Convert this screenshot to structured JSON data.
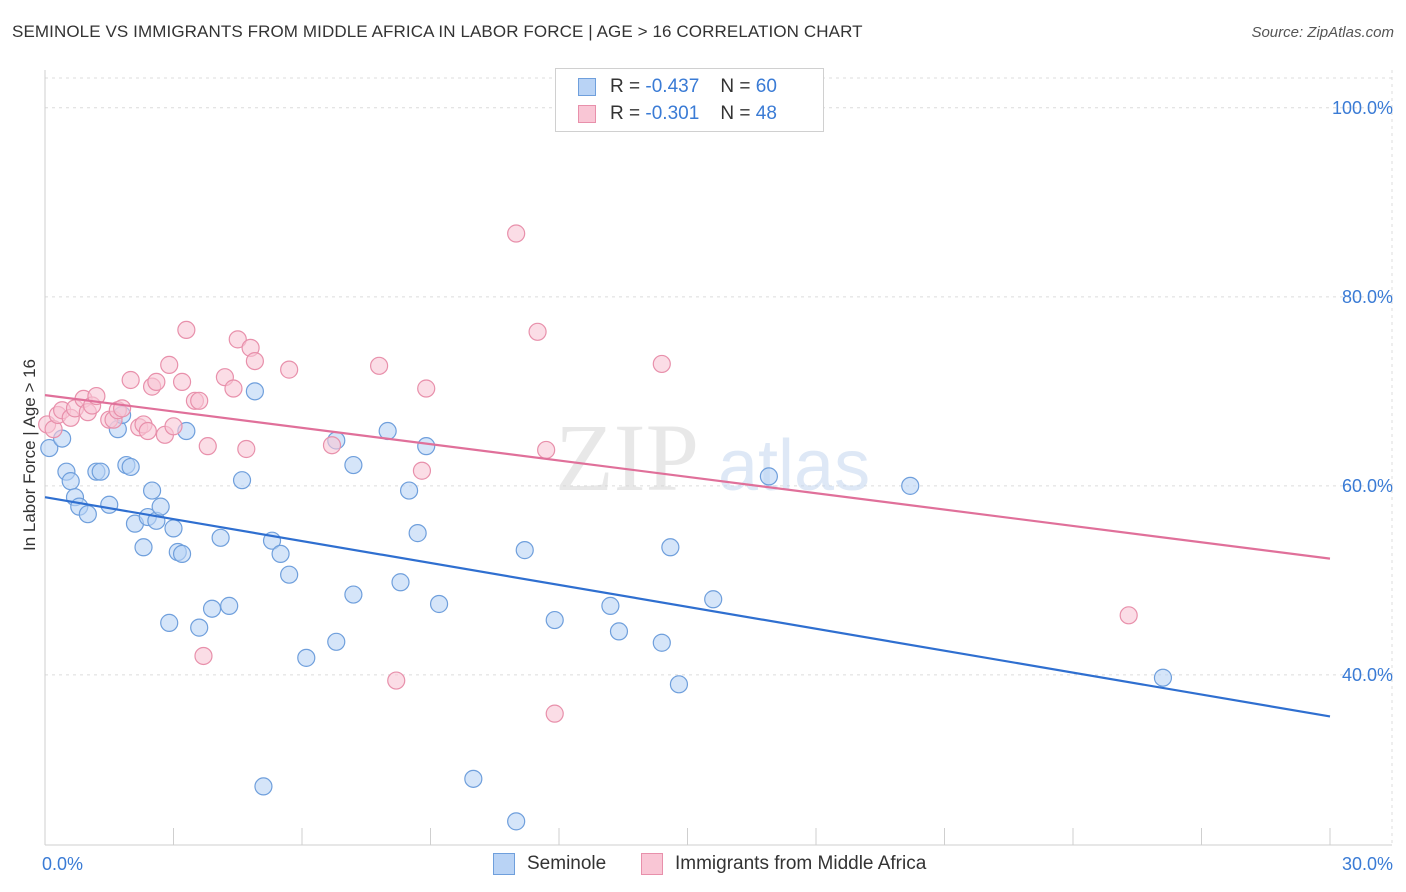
{
  "title": "SEMINOLE VS IMMIGRANTS FROM MIDDLE AFRICA IN LABOR FORCE | AGE > 16 CORRELATION CHART",
  "source": "Source: ZipAtlas.com",
  "watermark": {
    "zip": "ZIP",
    "atlas": "atlas"
  },
  "legend": {
    "rows": [
      {
        "r_label": "R =",
        "r_value": "-0.437",
        "n_label": "N =",
        "n_value": "60",
        "fill": "#b9d3f5",
        "stroke": "#6f9fdc"
      },
      {
        "r_label": "R =",
        "r_value": "-0.301",
        "n_label": "N =",
        "n_value": "48",
        "fill": "#f9c6d5",
        "stroke": "#e890ab"
      }
    ]
  },
  "chart_data": {
    "type": "scatter",
    "xlabel": "",
    "ylabel": "In Labor Force | Age > 16",
    "xlim": [
      0,
      30
    ],
    "ylim": [
      22,
      104
    ],
    "x_tick_labels": [
      {
        "value": 0,
        "label": "0.0%"
      },
      {
        "value": 30,
        "label": "30.0%"
      }
    ],
    "y_tick_labels": [
      {
        "value": 40,
        "label": "40.0%"
      },
      {
        "value": 60,
        "label": "60.0%"
      },
      {
        "value": 80,
        "label": "80.0%"
      },
      {
        "value": 100,
        "label": "100.0%"
      }
    ],
    "grid": true,
    "legend_placement": "top-center",
    "series": [
      {
        "name": "Seminole",
        "color": "#6f9fdc",
        "fill": "#b9d3f5",
        "trend_color": "#2f6fd0",
        "trend": {
          "x": [
            0,
            30
          ],
          "y": [
            58.8,
            35.6
          ]
        },
        "points": [
          [
            0.1,
            64
          ],
          [
            0.4,
            65
          ],
          [
            0.5,
            61.5
          ],
          [
            0.6,
            60.5
          ],
          [
            0.7,
            58.8
          ],
          [
            0.8,
            57.8
          ],
          [
            1.0,
            57
          ],
          [
            1.2,
            61.5
          ],
          [
            1.3,
            61.5
          ],
          [
            1.5,
            58
          ],
          [
            1.7,
            66
          ],
          [
            1.8,
            67.5
          ],
          [
            1.9,
            62.2
          ],
          [
            2.0,
            62
          ],
          [
            2.1,
            56
          ],
          [
            2.3,
            53.5
          ],
          [
            2.4,
            56.7
          ],
          [
            2.5,
            59.5
          ],
          [
            2.6,
            56.3
          ],
          [
            2.7,
            57.8
          ],
          [
            2.9,
            45.5
          ],
          [
            3.0,
            55.5
          ],
          [
            3.1,
            53
          ],
          [
            3.2,
            52.8
          ],
          [
            3.3,
            65.8
          ],
          [
            3.6,
            45
          ],
          [
            3.9,
            47
          ],
          [
            4.1,
            54.5
          ],
          [
            4.3,
            47.3
          ],
          [
            4.6,
            60.6
          ],
          [
            4.9,
            70
          ],
          [
            5.1,
            28.2
          ],
          [
            5.3,
            54.2
          ],
          [
            5.5,
            52.8
          ],
          [
            5.7,
            50.6
          ],
          [
            6.1,
            41.8
          ],
          [
            6.8,
            43.5
          ],
          [
            6.8,
            64.8
          ],
          [
            7.2,
            62.2
          ],
          [
            7.2,
            48.5
          ],
          [
            8.0,
            65.8
          ],
          [
            8.3,
            49.8
          ],
          [
            8.5,
            59.5
          ],
          [
            8.7,
            55
          ],
          [
            8.9,
            64.2
          ],
          [
            9.2,
            47.5
          ],
          [
            10.0,
            29
          ],
          [
            11.0,
            24.5
          ],
          [
            11.2,
            53.2
          ],
          [
            11.9,
            45.8
          ],
          [
            13.2,
            47.3
          ],
          [
            13.4,
            44.6
          ],
          [
            14.4,
            43.4
          ],
          [
            14.6,
            53.5
          ],
          [
            14.8,
            39
          ],
          [
            15.6,
            48
          ],
          [
            16.9,
            61
          ],
          [
            20.2,
            60
          ],
          [
            26.1,
            39.7
          ]
        ]
      },
      {
        "name": "Immigrants from Middle Africa",
        "color": "#e890ab",
        "fill": "#f9c6d5",
        "trend_color": "#e0709a",
        "trend": {
          "x": [
            0,
            30
          ],
          "y": [
            69.6,
            52.3
          ]
        },
        "points": [
          [
            0.05,
            66.5
          ],
          [
            0.2,
            66
          ],
          [
            0.3,
            67.5
          ],
          [
            0.4,
            68
          ],
          [
            0.6,
            67.2
          ],
          [
            0.7,
            68.2
          ],
          [
            0.9,
            69.2
          ],
          [
            1.0,
            67.8
          ],
          [
            1.1,
            68.5
          ],
          [
            1.2,
            69.5
          ],
          [
            1.5,
            67
          ],
          [
            1.6,
            67
          ],
          [
            1.7,
            68
          ],
          [
            1.8,
            68.2
          ],
          [
            2.0,
            71.2
          ],
          [
            2.2,
            66.2
          ],
          [
            2.3,
            66.5
          ],
          [
            2.4,
            65.8
          ],
          [
            2.5,
            70.5
          ],
          [
            2.6,
            71
          ],
          [
            2.8,
            65.4
          ],
          [
            2.9,
            72.8
          ],
          [
            3.0,
            66.3
          ],
          [
            3.2,
            71
          ],
          [
            3.3,
            76.5
          ],
          [
            3.5,
            69
          ],
          [
            3.6,
            69
          ],
          [
            3.7,
            42
          ],
          [
            3.8,
            64.2
          ],
          [
            4.2,
            71.5
          ],
          [
            4.4,
            70.3
          ],
          [
            4.5,
            75.5
          ],
          [
            4.7,
            63.9
          ],
          [
            4.8,
            74.6
          ],
          [
            4.9,
            73.2
          ],
          [
            5.7,
            72.3
          ],
          [
            6.7,
            64.3
          ],
          [
            7.8,
            72.7
          ],
          [
            8.2,
            39.4
          ],
          [
            8.8,
            61.6
          ],
          [
            8.9,
            70.3
          ],
          [
            11.0,
            86.7
          ],
          [
            11.5,
            76.3
          ],
          [
            11.7,
            63.8
          ],
          [
            11.9,
            35.9
          ],
          [
            14.4,
            72.9
          ],
          [
            25.3,
            46.3
          ]
        ]
      }
    ]
  }
}
